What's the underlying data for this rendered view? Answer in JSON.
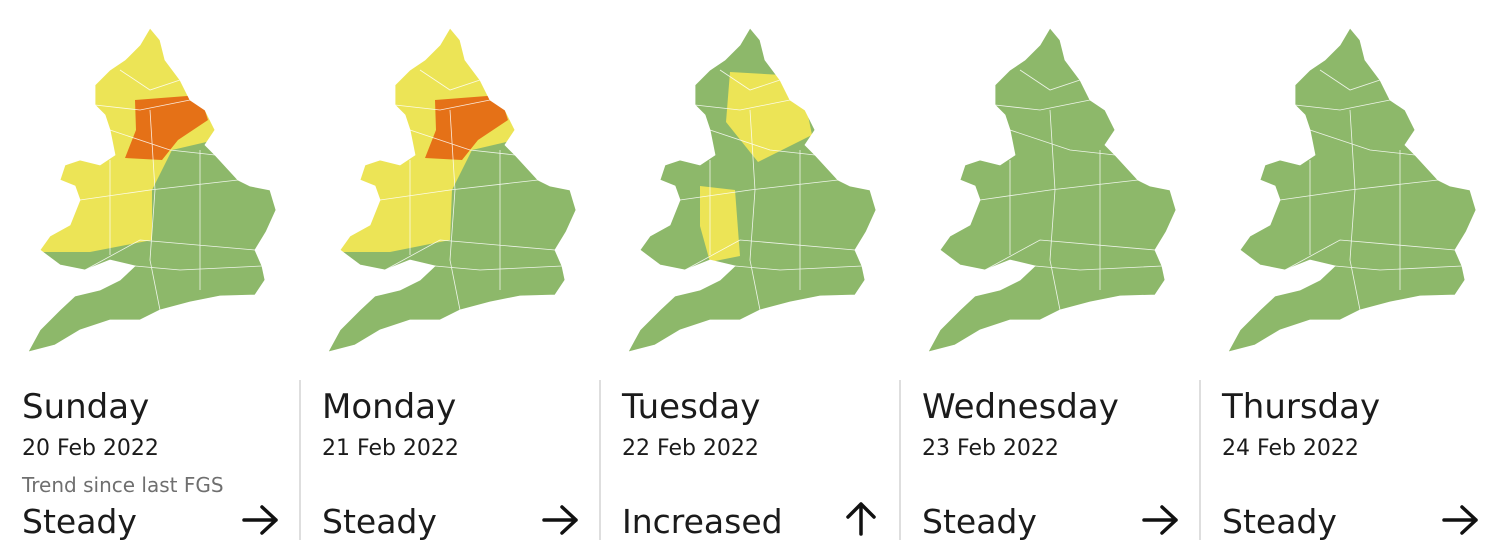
{
  "trend_label": "Trend since last FGS",
  "days": [
    {
      "day": "Sunday",
      "date": "20 Feb 2022",
      "trend": "Steady"
    },
    {
      "day": "Monday",
      "date": "21 Feb 2022",
      "trend": "Steady"
    },
    {
      "day": "Tuesday",
      "date": "22 Feb 2022",
      "trend": "Increased"
    },
    {
      "day": "Wednesday",
      "date": "23 Feb 2022",
      "trend": "Steady"
    },
    {
      "day": "Thursday",
      "date": "24 Feb 2022",
      "trend": "Steady"
    }
  ]
}
